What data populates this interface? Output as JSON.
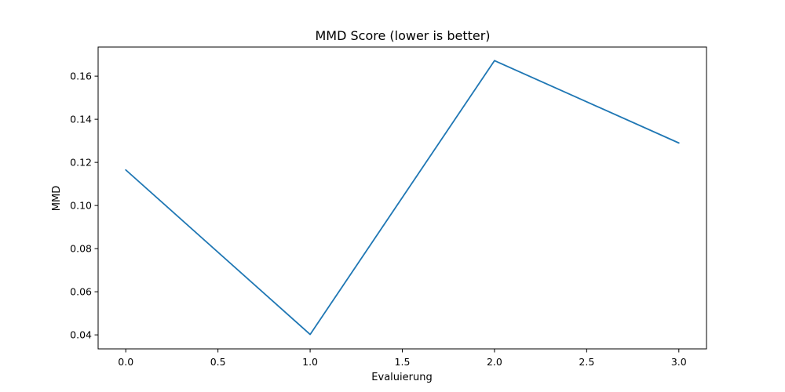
{
  "chart_data": {
    "type": "line",
    "title": "MMD Score (lower is better)",
    "xlabel": "Evaluierung",
    "ylabel": "MMD",
    "xlim": [
      -0.15,
      3.15
    ],
    "ylim": [
      0.0335,
      0.1735
    ],
    "xticks": [
      0.0,
      0.5,
      1.0,
      1.5,
      2.0,
      2.5,
      3.0
    ],
    "xtick_labels": [
      "0.0",
      "0.5",
      "1.0",
      "1.5",
      "2.0",
      "2.5",
      "3.0"
    ],
    "yticks": [
      0.04,
      0.06,
      0.08,
      0.1,
      0.12,
      0.14,
      0.16
    ],
    "ytick_labels": [
      "0.04",
      "0.06",
      "0.08",
      "0.10",
      "0.12",
      "0.14",
      "0.16"
    ],
    "grid": false,
    "series": [
      {
        "x": [
          0,
          1,
          2,
          3
        ],
        "y": [
          0.1165,
          0.0402,
          0.1672,
          0.129
        ],
        "color": "#1f77b4"
      }
    ]
  }
}
